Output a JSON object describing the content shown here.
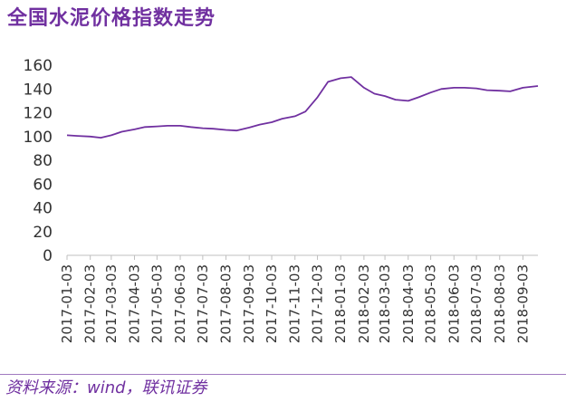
{
  "title": "全国水泥价格指数走势",
  "source": "资料来源：wind，联讯证券",
  "colors": {
    "line": "#7030a0",
    "title": "#7030a0",
    "axis": "#bfbfbf"
  },
  "chart_data": {
    "type": "line",
    "title": "全国水泥价格指数走势",
    "xlabel": "",
    "ylabel": "",
    "ylim": [
      0,
      160
    ],
    "yticks": [
      0,
      20,
      40,
      60,
      80,
      100,
      120,
      140,
      160
    ],
    "grid": false,
    "legend": "none",
    "xticks": [
      "2017-01-03",
      "2017-02-03",
      "2017-03-03",
      "2017-04-03",
      "2017-05-03",
      "2017-06-03",
      "2017-07-03",
      "2017-08-03",
      "2017-09-03",
      "2017-10-03",
      "2017-11-03",
      "2017-12-03",
      "2018-01-03",
      "2018-02-03",
      "2018-03-03",
      "2018-04-03",
      "2018-05-03",
      "2018-06-03",
      "2018-07-03",
      "2018-08-03",
      "2018-09-03"
    ],
    "series": [
      {
        "x": [
          "2017-01-03",
          "2017-01-17",
          "2017-02-03",
          "2017-02-17",
          "2017-03-03",
          "2017-03-17",
          "2017-04-03",
          "2017-04-17",
          "2017-05-03",
          "2017-05-17",
          "2017-06-03",
          "2017-06-17",
          "2017-07-03",
          "2017-07-17",
          "2017-08-03",
          "2017-08-17",
          "2017-09-03",
          "2017-09-17",
          "2017-10-03",
          "2017-10-17",
          "2017-11-03",
          "2017-11-17",
          "2017-12-03",
          "2017-12-17",
          "2018-01-03",
          "2018-01-17",
          "2018-02-03",
          "2018-02-17",
          "2018-03-03",
          "2018-03-17",
          "2018-04-03",
          "2018-04-17",
          "2018-05-03",
          "2018-05-17",
          "2018-06-03",
          "2018-06-17",
          "2018-07-03",
          "2018-07-17",
          "2018-08-03",
          "2018-08-17",
          "2018-09-03",
          "2018-09-23"
        ],
        "values": [
          101,
          100.5,
          100,
          99,
          101,
          104,
          106,
          108,
          108.5,
          109,
          109,
          108,
          107,
          106.5,
          105.5,
          105,
          107.5,
          110,
          112,
          115,
          117,
          121,
          133,
          146,
          149,
          150,
          141,
          136,
          134,
          131,
          130,
          133,
          137,
          140,
          141,
          141,
          140.5,
          139,
          138.5,
          138,
          141,
          142.5
        ]
      }
    ]
  }
}
